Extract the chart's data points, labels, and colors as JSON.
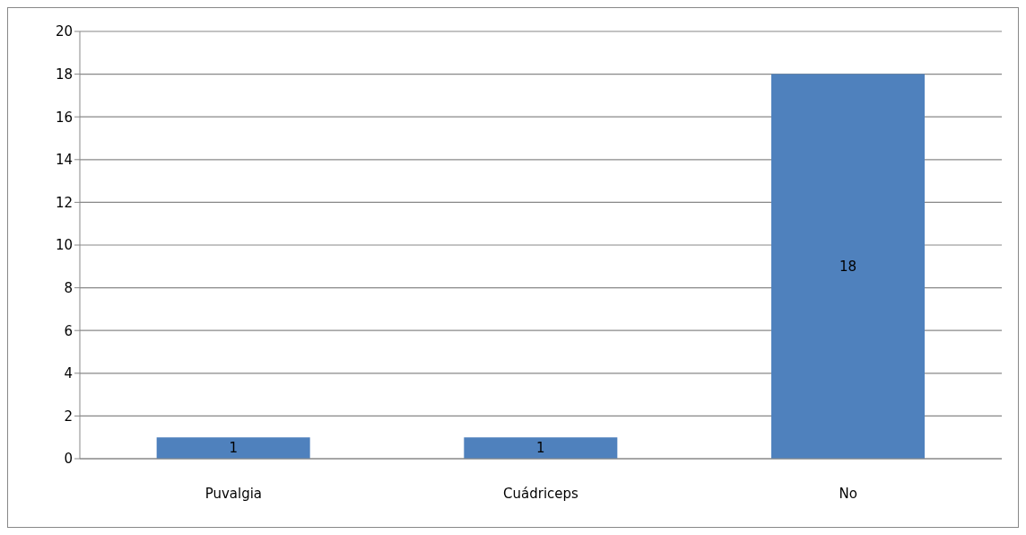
{
  "chart_data": {
    "type": "bar",
    "categories": [
      "Puvalgia",
      "Cuádriceps",
      "No"
    ],
    "values": [
      1,
      1,
      18
    ],
    "color": "#4f81bd",
    "ylim": [
      0,
      20
    ],
    "yticks": [
      0,
      2,
      4,
      6,
      8,
      10,
      12,
      14,
      16,
      18,
      20
    ],
    "grid": "y",
    "data_labels": true
  }
}
